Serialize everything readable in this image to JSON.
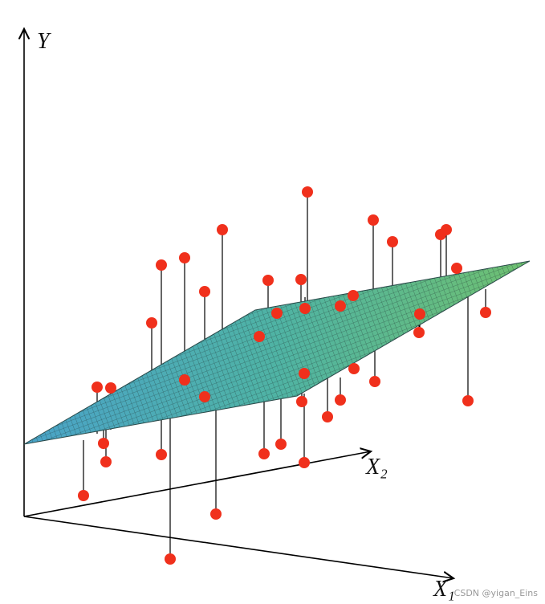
{
  "axes": {
    "y": "Y",
    "x2": "X₂",
    "x1": "X₁"
  },
  "watermark": "CSDN @yigan_Eins"
}
